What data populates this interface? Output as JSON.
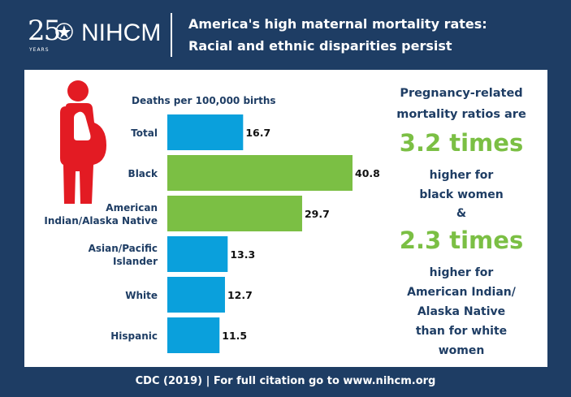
{
  "header": {
    "logo_years_number": "25",
    "logo_years_text": "YEARS",
    "logo_name": "NIHCM",
    "title_line1": "America's high maternal mortality rates:",
    "title_line2": "Racial and ethnic disparities persist"
  },
  "colors": {
    "background": "#1e3d64",
    "bar_blue": "#0aa0dc",
    "bar_green": "#7bbf44",
    "figure_red": "#e31b23"
  },
  "chart_data": {
    "type": "bar",
    "orientation": "horizontal",
    "title": "Deaths per 100,000 births",
    "categories": [
      "Total",
      "Black",
      "American Indian/Alaska Native",
      "Asian/Pacific Islander",
      "White",
      "Hispanic"
    ],
    "category_lines": [
      [
        "Total"
      ],
      [
        "Black"
      ],
      [
        "American",
        "Indian/Alaska Native"
      ],
      [
        "Asian/Pacific",
        "Islander"
      ],
      [
        "White"
      ],
      [
        "Hispanic"
      ]
    ],
    "values": [
      16.7,
      40.8,
      29.7,
      13.3,
      12.7,
      11.5
    ],
    "value_labels": [
      "16.7",
      "40.8",
      "29.7",
      "13.3",
      "12.7",
      "11.5"
    ],
    "highlight": [
      false,
      true,
      true,
      false,
      false,
      false
    ],
    "xlim": [
      0,
      40.8
    ],
    "grid": false,
    "legend": "none"
  },
  "callout": {
    "intro_line1": "Pregnancy-related",
    "intro_line2": "mortality ratios are",
    "stat1": "3.2 times",
    "stat1_line1": "higher for",
    "stat1_line2": "black women",
    "amp": "&",
    "stat2": "2.3 times",
    "stat2_line1": "higher for",
    "stat2_line2": "American Indian/",
    "stat2_line3": "Alaska Native",
    "stat2_line4": "than for white",
    "stat2_line5": "women"
  },
  "footer": {
    "citation": "CDC (2019) | For full citation go to www.nihcm.org"
  }
}
